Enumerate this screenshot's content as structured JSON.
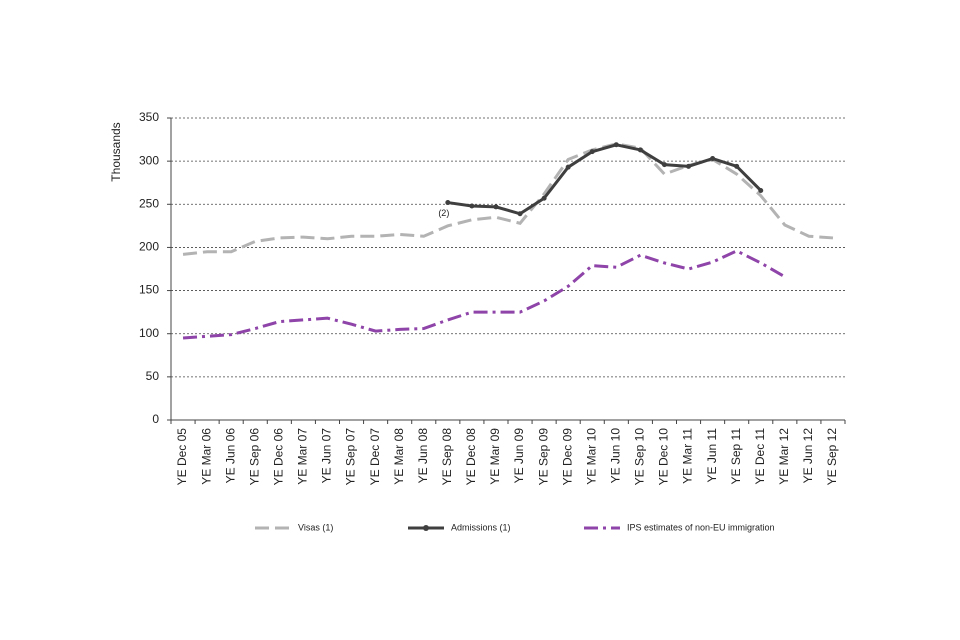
{
  "chart_data": {
    "type": "line",
    "y_label": "Thousands",
    "annotation": "(2)",
    "categories": [
      "YE Dec 05",
      "YE Mar 06",
      "YE Jun 06",
      "YE Sep 06",
      "YE Dec 06",
      "YE Mar 07",
      "YE Jun 07",
      "YE Sep 07",
      "YE Dec 07",
      "YE Mar 08",
      "YE Jun 08",
      "YE Sep 08",
      "YE Dec 08",
      "YE Mar 09",
      "YE Jun 09",
      "YE Sep 09",
      "YE Dec 09",
      "YE Mar 10",
      "YE Jun 10",
      "YE Sep 10",
      "YE Dec 10",
      "YE Mar 11",
      "YE Jun 11",
      "YE Sep 11",
      "YE Dec 11",
      "YE Mar 12",
      "YE Jun 12",
      "YE Sep 12"
    ],
    "series": [
      {
        "name": "Visas (1)",
        "color": "#b3b3b3",
        "line_style": "dashed",
        "values": [
          192,
          195,
          195,
          207,
          211,
          212,
          210,
          213,
          213,
          215,
          213,
          225,
          232,
          235,
          228,
          262,
          302,
          313,
          320,
          315,
          285,
          295,
          302,
          285,
          260,
          226,
          213,
          211
        ]
      },
      {
        "name": "Admissions (1)",
        "color": "#3f3f3f",
        "line_style": "solid-markers",
        "values": [
          null,
          null,
          null,
          null,
          null,
          null,
          null,
          null,
          null,
          null,
          null,
          252,
          248,
          247,
          239,
          257,
          293,
          311,
          319,
          313,
          296,
          294,
          303,
          294,
          266,
          null,
          null,
          null
        ]
      },
      {
        "name": "IPS estimates of non-EU immigration",
        "color": "#8e44a8",
        "line_style": "dash-dot",
        "values": [
          95,
          97,
          99,
          106,
          114,
          116,
          118,
          111,
          103,
          105,
          106,
          116,
          125,
          125,
          125,
          138,
          155,
          179,
          177,
          191,
          182,
          175,
          183,
          196,
          182,
          166,
          null,
          null
        ]
      }
    ],
    "ylim": [
      0,
      350
    ],
    "yticks": [
      0,
      50,
      100,
      150,
      200,
      250,
      300,
      350
    ],
    "grid": true
  }
}
